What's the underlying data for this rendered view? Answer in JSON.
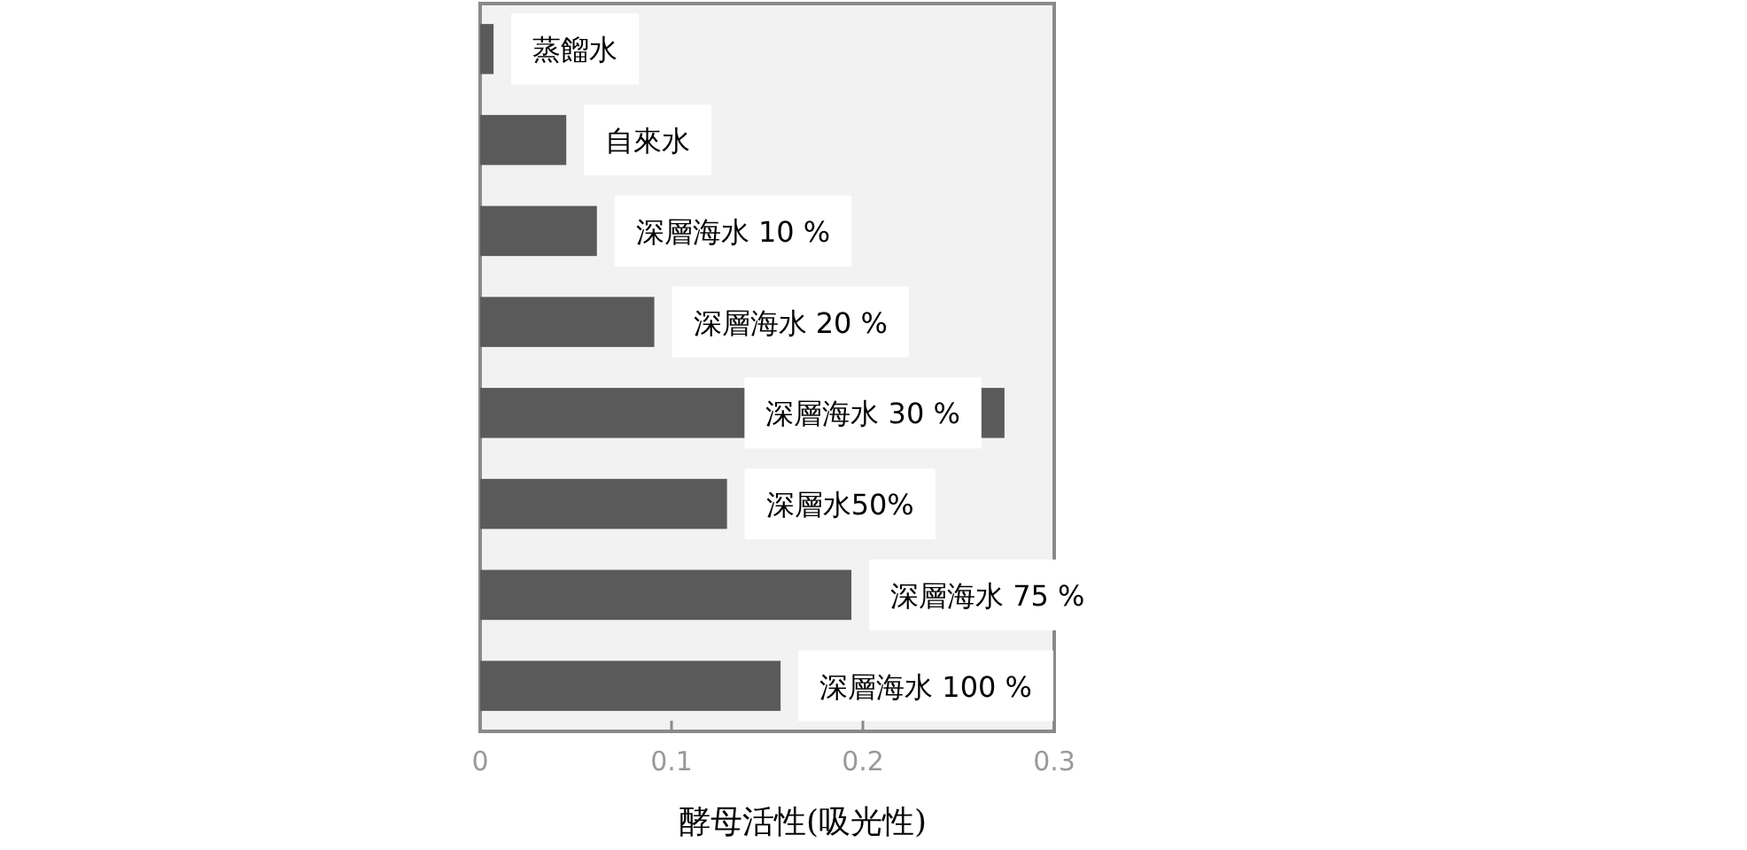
{
  "chart_data": {
    "type": "bar",
    "orientation": "horizontal",
    "categories": [
      "蒸餾水",
      "自來水",
      "深層海水 10 %",
      "深層海水 20 %",
      "深層海水 30 %",
      "深層水50%",
      "深層海水 75 %",
      "深層海水 100 %"
    ],
    "values": [
      0.007,
      0.045,
      0.061,
      0.091,
      0.274,
      0.129,
      0.194,
      0.157
    ],
    "color": "#5a5a5a",
    "xlim": [
      0,
      0.3
    ],
    "xticks": [
      0,
      0.1,
      0.2,
      0.3
    ],
    "xlabel": "酵母活性(吸光性)",
    "grid": false
  }
}
